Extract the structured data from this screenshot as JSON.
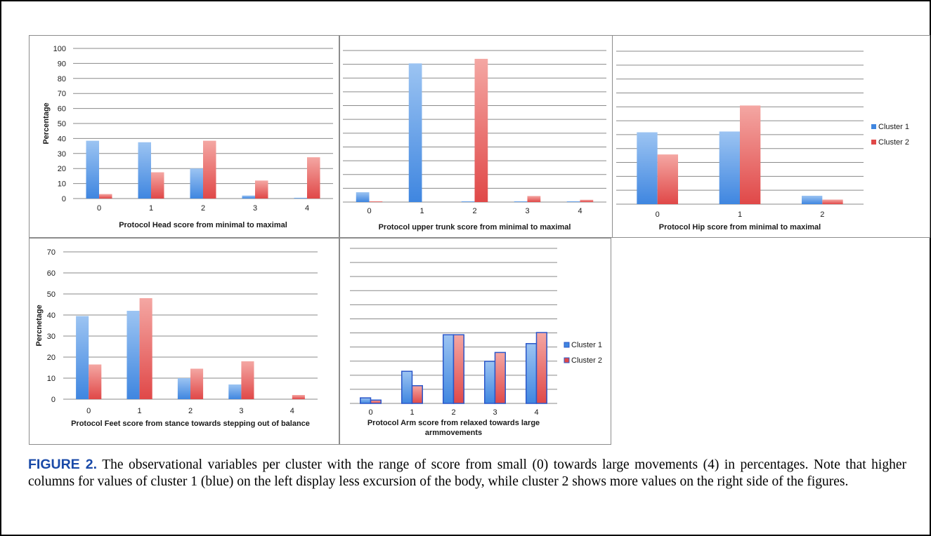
{
  "caption": {
    "label": "FIGURE 2.",
    "text": " The observational variables per cluster with the range of score from small (0) towards large movements (4) in percentages. Note that higher columns for values of cluster 1 (blue) on the left display less excursion of the body, while cluster 2 shows more values on the right side of the figures."
  },
  "colors": {
    "cluster1": "#3f86e0",
    "cluster2": "#e04848",
    "grid": "#8a8a8a"
  },
  "chart_data": [
    {
      "type": "bar",
      "title": "",
      "xlabel": "Protocol  Head score  from minimal to maximal",
      "ylabel": "Percentage",
      "categories": [
        "0",
        "1",
        "2",
        "3",
        "4"
      ],
      "ylim": [
        0,
        100
      ],
      "ticks": [
        "0",
        "10",
        "20",
        "30",
        "40",
        "50",
        "60",
        "70",
        "80",
        "90",
        "100"
      ],
      "grid": true,
      "legend": "none",
      "series": [
        {
          "values": [
            38.5,
            37.5,
            20,
            2,
            0.5
          ]
        },
        {
          "values": [
            3,
            17.5,
            38.5,
            12,
            27.5
          ]
        }
      ]
    },
    {
      "type": "bar",
      "title": "",
      "xlabel": "Protocol upper trunk score from minimal to maximal",
      "ylabel": "",
      "categories": [
        "0",
        "1",
        "2",
        "3",
        "4"
      ],
      "ylim": [
        0,
        100
      ],
      "ticks": [],
      "grid": true,
      "legend": "none",
      "series": [
        {
          "values": [
            6.5,
            91.5,
            0.5,
            0.5,
            0.5
          ]
        },
        {
          "values": [
            0.5,
            0,
            94.5,
            4,
            1.5
          ]
        }
      ]
    },
    {
      "type": "bar",
      "title": "",
      "xlabel": "Protocol Hip score from minimal to maximal",
      "ylabel": "",
      "categories": [
        "0",
        "1",
        "2"
      ],
      "ylim": [
        0,
        100
      ],
      "ticks": [],
      "grid": true,
      "legend": "right",
      "series": [
        {
          "name": "Cluster 1",
          "values": [
            47,
            47.5,
            5.5
          ]
        },
        {
          "name": "Cluster 2",
          "values": [
            32.5,
            64.5,
            3
          ]
        }
      ]
    },
    {
      "type": "bar",
      "title": "",
      "xlabel": "Protocol  Feet score from stance towards stepping out of balance",
      "ylabel": "Percnetage",
      "categories": [
        "0",
        "1",
        "2",
        "3",
        "4"
      ],
      "ylim": [
        0,
        70
      ],
      "ticks": [
        "0",
        "10",
        "20",
        "30",
        "40",
        "50",
        "60",
        "70"
      ],
      "grid": true,
      "legend": "none",
      "series": [
        {
          "values": [
            39.5,
            42,
            10,
            7,
            0
          ]
        },
        {
          "values": [
            16.5,
            48,
            14.5,
            18,
            2
          ]
        }
      ]
    },
    {
      "type": "bar",
      "title": "",
      "xlabel": "Protocol Arm score from relaxed towards large armmovements",
      "ylabel": "",
      "categories": [
        "0",
        "1",
        "2",
        "3",
        "4"
      ],
      "ylim": [
        0,
        70
      ],
      "ticks": [],
      "grid": true,
      "legend": "right",
      "series": [
        {
          "name": "Cluster 1",
          "values": [
            2.5,
            14.5,
            31,
            19,
            27
          ]
        },
        {
          "name": "Cluster 2",
          "values": [
            1.5,
            8,
            31,
            23,
            32
          ]
        }
      ]
    }
  ]
}
